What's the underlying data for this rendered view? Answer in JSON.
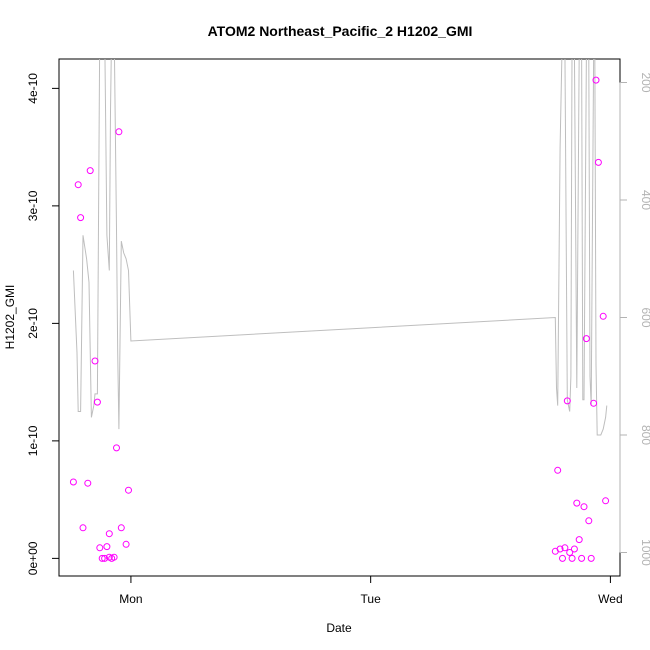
{
  "chart_data": {
    "type": "scatter",
    "title": "ATOM2 Northeast_Pacific_2 H1202_GMI",
    "xlabel": "Date",
    "ylabel": "H1202_GMI",
    "x_ticks": [
      "Mon",
      "Tue",
      "Wed"
    ],
    "x_tick_days": [
      1,
      2,
      3
    ],
    "xlim": [
      0.7,
      3.04
    ],
    "y_ticks": [
      0,
      1e-10,
      2e-10,
      3e-10,
      4e-10
    ],
    "y_tick_labels": [
      "0e+00",
      "1e-10",
      "2e-10",
      "3e-10",
      "4e-10"
    ],
    "ylim": [
      -1.5e-11,
      4.25e-10
    ],
    "right_axis": {
      "ticks": [
        200,
        400,
        600,
        800,
        1000
      ],
      "tick_labels": [
        "200",
        "400",
        "600",
        "800",
        "1000"
      ],
      "lim": [
        1040,
        160
      ],
      "color": "#b3b3b3"
    },
    "series": [
      {
        "type": "scatter",
        "axis": "left",
        "color": "#ff00ff",
        "points": [
          [
            0.76,
            6.5e-11
          ],
          [
            0.78,
            3.18e-10
          ],
          [
            0.79,
            2.9e-10
          ],
          [
            0.8,
            2.6e-11
          ],
          [
            0.82,
            6.4e-11
          ],
          [
            0.83,
            3.3e-10
          ],
          [
            0.85,
            1.68e-10
          ],
          [
            0.86,
            1.33e-10
          ],
          [
            0.87,
            9e-12
          ],
          [
            0.88,
            0.0
          ],
          [
            0.89,
            0.0
          ],
          [
            0.9,
            1e-11
          ],
          [
            0.91,
            2.1e-11
          ],
          [
            0.91,
            1e-12
          ],
          [
            0.92,
            0.0
          ],
          [
            0.93,
            1e-12
          ],
          [
            0.94,
            9.4e-11
          ],
          [
            0.95,
            3.63e-10
          ],
          [
            0.96,
            2.6e-11
          ],
          [
            0.98,
            1.2e-11
          ],
          [
            0.99,
            5.8e-11
          ],
          [
            2.77,
            6e-12
          ],
          [
            2.78,
            7.5e-11
          ],
          [
            2.79,
            8e-12
          ],
          [
            2.8,
            0.0
          ],
          [
            2.81,
            9e-12
          ],
          [
            2.82,
            1.34e-10
          ],
          [
            2.83,
            5e-12
          ],
          [
            2.84,
            0.0
          ],
          [
            2.85,
            8e-12
          ],
          [
            2.86,
            4.7e-11
          ],
          [
            2.87,
            1.6e-11
          ],
          [
            2.88,
            0.0
          ],
          [
            2.89,
            4.4e-11
          ],
          [
            2.9,
            1.87e-10
          ],
          [
            2.91,
            3.2e-11
          ],
          [
            2.92,
            0.0
          ],
          [
            2.93,
            1.32e-10
          ],
          [
            2.94,
            4.07e-10
          ],
          [
            2.95,
            3.37e-10
          ],
          [
            2.97,
            2.06e-10
          ],
          [
            2.98,
            4.9e-11
          ]
        ]
      },
      {
        "type": "line",
        "axis": "right",
        "color": "#bebebe",
        "points": [
          [
            0.76,
            520
          ],
          [
            0.775,
            660
          ],
          [
            0.78,
            760
          ],
          [
            0.79,
            760
          ],
          [
            0.8,
            460
          ],
          [
            0.815,
            500
          ],
          [
            0.825,
            540
          ],
          [
            0.835,
            770
          ],
          [
            0.845,
            750
          ],
          [
            0.85,
            730
          ],
          [
            0.86,
            730
          ],
          [
            0.87,
            100
          ],
          [
            0.88,
            40
          ],
          [
            0.89,
            100
          ],
          [
            0.9,
            460
          ],
          [
            0.91,
            520
          ],
          [
            0.915,
            250
          ],
          [
            0.92,
            100
          ],
          [
            0.93,
            100
          ],
          [
            0.94,
            450
          ],
          [
            0.945,
            660
          ],
          [
            0.95,
            790
          ],
          [
            0.955,
            630
          ],
          [
            0.96,
            470
          ],
          [
            0.97,
            490
          ],
          [
            0.98,
            500
          ],
          [
            0.99,
            520
          ],
          [
            1.0,
            640
          ],
          [
            2.77,
            600
          ],
          [
            2.775,
            720
          ],
          [
            2.78,
            750
          ],
          [
            2.79,
            310
          ],
          [
            2.8,
            100
          ],
          [
            2.81,
            140
          ],
          [
            2.82,
            740
          ],
          [
            2.83,
            760
          ],
          [
            2.835,
            700
          ],
          [
            2.84,
            100
          ],
          [
            2.85,
            140
          ],
          [
            2.86,
            720
          ],
          [
            2.87,
            150
          ],
          [
            2.88,
            140
          ],
          [
            2.885,
            740
          ],
          [
            2.89,
            740
          ],
          [
            2.9,
            150
          ],
          [
            2.91,
            160
          ],
          [
            2.915,
            700
          ],
          [
            2.92,
            750
          ],
          [
            2.93,
            160
          ],
          [
            2.935,
            140
          ],
          [
            2.94,
            680
          ],
          [
            2.945,
            800
          ],
          [
            2.96,
            800
          ],
          [
            2.97,
            790
          ],
          [
            2.98,
            770
          ],
          [
            2.985,
            750
          ]
        ]
      }
    ],
    "grid": false,
    "legend": "none"
  }
}
